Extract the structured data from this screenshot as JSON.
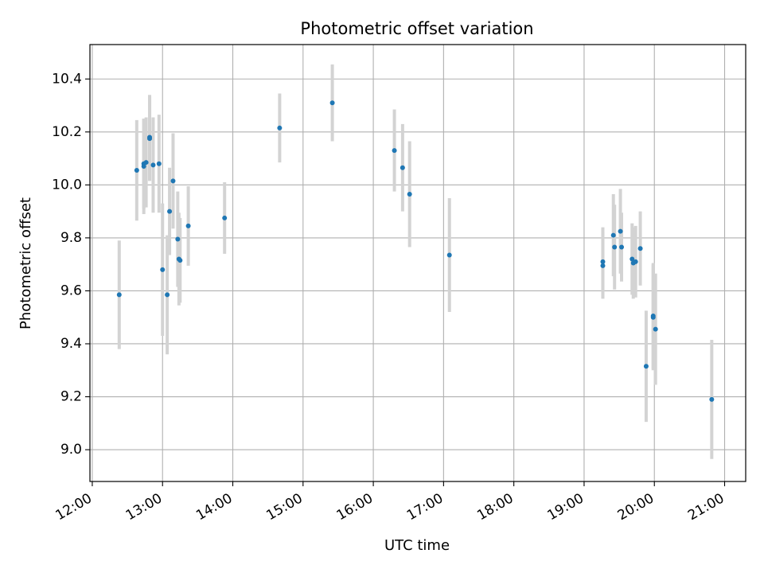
{
  "chart_data": {
    "type": "scatter",
    "title": "Photometric offset variation",
    "xlabel": "UTC time",
    "ylabel": "Photometric offset",
    "grid": true,
    "xlim": [
      "11:58",
      "21:18"
    ],
    "ylim": [
      8.88,
      10.53
    ],
    "xticks": [
      "12:00",
      "13:00",
      "14:00",
      "15:00",
      "16:00",
      "17:00",
      "18:00",
      "19:00",
      "20:00",
      "21:00"
    ],
    "yticks": [
      "9.0",
      "9.2",
      "9.4",
      "9.6",
      "9.8",
      "10.0",
      "10.2",
      "10.4"
    ],
    "colors": {
      "point": "#1f77b4",
      "errorbar": "#d3d3d3",
      "grid": "#b0b0b0"
    },
    "points": [
      {
        "x": "12:23",
        "y": 9.585,
        "err": 0.205
      },
      {
        "x": "12:38",
        "y": 10.055,
        "err": 0.19
      },
      {
        "x": "12:44",
        "y": 10.08,
        "err": 0.17
      },
      {
        "x": "12:44",
        "y": 10.07,
        "err": 0.18
      },
      {
        "x": "12:46",
        "y": 10.085,
        "err": 0.17
      },
      {
        "x": "12:49",
        "y": 10.18,
        "err": 0.16
      },
      {
        "x": "12:49",
        "y": 10.175,
        "err": 0.16
      },
      {
        "x": "12:52",
        "y": 10.075,
        "err": 0.18
      },
      {
        "x": "12:57",
        "y": 10.08,
        "err": 0.185
      },
      {
        "x": "13:00",
        "y": 9.68,
        "err": 0.25
      },
      {
        "x": "13:04",
        "y": 9.585,
        "err": 0.225
      },
      {
        "x": "13:06",
        "y": 9.9,
        "err": 0.165
      },
      {
        "x": "13:09",
        "y": 10.015,
        "err": 0.18
      },
      {
        "x": "13:13",
        "y": 9.795,
        "err": 0.18
      },
      {
        "x": "13:14",
        "y": 9.72,
        "err": 0.175
      },
      {
        "x": "13:15",
        "y": 9.715,
        "err": 0.16
      },
      {
        "x": "13:22",
        "y": 9.845,
        "err": 0.15
      },
      {
        "x": "13:53",
        "y": 9.875,
        "err": 0.135
      },
      {
        "x": "14:40",
        "y": 10.215,
        "err": 0.13
      },
      {
        "x": "15:25",
        "y": 10.31,
        "err": 0.145
      },
      {
        "x": "16:18",
        "y": 10.13,
        "err": 0.155
      },
      {
        "x": "16:25",
        "y": 10.065,
        "err": 0.165
      },
      {
        "x": "16:31",
        "y": 9.965,
        "err": 0.2
      },
      {
        "x": "17:05",
        "y": 9.735,
        "err": 0.215
      },
      {
        "x": "19:16",
        "y": 9.695,
        "err": 0.125
      },
      {
        "x": "19:16",
        "y": 9.71,
        "err": 0.13
      },
      {
        "x": "19:25",
        "y": 9.81,
        "err": 0.155
      },
      {
        "x": "19:26",
        "y": 9.765,
        "err": 0.16
      },
      {
        "x": "19:31",
        "y": 9.825,
        "err": 0.16
      },
      {
        "x": "19:32",
        "y": 9.765,
        "err": 0.13
      },
      {
        "x": "19:41",
        "y": 9.72,
        "err": 0.135
      },
      {
        "x": "19:42",
        "y": 9.705,
        "err": 0.135
      },
      {
        "x": "19:44",
        "y": 9.71,
        "err": 0.135
      },
      {
        "x": "19:48",
        "y": 9.76,
        "err": 0.14
      },
      {
        "x": "19:53",
        "y": 9.315,
        "err": 0.21
      },
      {
        "x": "19:59",
        "y": 9.505,
        "err": 0.2
      },
      {
        "x": "19:59",
        "y": 9.5,
        "err": 0.2
      },
      {
        "x": "20:01",
        "y": 9.455,
        "err": 0.21
      },
      {
        "x": "20:49",
        "y": 9.19,
        "err": 0.225
      }
    ]
  }
}
